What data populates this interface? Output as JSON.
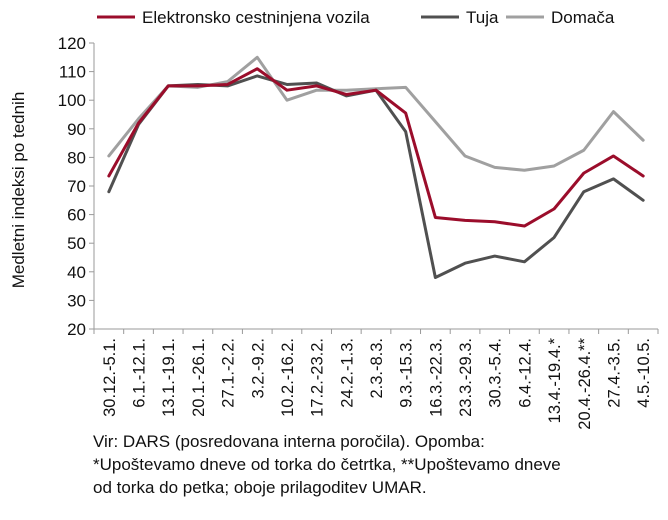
{
  "chart_data": {
    "type": "line",
    "title": "",
    "xlabel": "",
    "ylabel": "Medletni indeksi po tednih",
    "ylim": [
      20,
      120
    ],
    "yticks": [
      20,
      30,
      40,
      50,
      60,
      70,
      80,
      90,
      100,
      110,
      120
    ],
    "grid": false,
    "legend_position": "top",
    "categories": [
      "30.12.-5.1.",
      "6.1.-12.1.",
      "13.1.-19.1.",
      "20.1.-26.1.",
      "27.1.-2.2.",
      "3.2.-9.2.",
      "10.2.-16.2.",
      "17.2.-23.2.",
      "24.2.-1.3.",
      "2.3.-8.3.",
      "9.3.-15.3.",
      "16.3.-22.3.",
      "23.3.-29.3.",
      "30.3.-5.4.",
      "6.4.-12.4.",
      "13.4.-19.4.*",
      "20.4.-26.4.**",
      "27.4.-3.5.",
      "4.5.-10.5."
    ],
    "series": [
      {
        "name": "Elektronsko cestninjena vozila",
        "color": "#9b0d2b",
        "values": [
          73.5,
          92,
          105,
          105,
          105.5,
          111,
          103.5,
          105,
          102,
          103.5,
          95.5,
          59,
          58,
          57.5,
          56,
          62,
          74.5,
          80.5,
          73.5
        ]
      },
      {
        "name": "Tuja",
        "color": "#505050",
        "values": [
          68,
          91.5,
          105,
          105.5,
          105,
          108.5,
          105.5,
          106,
          101.5,
          103.5,
          89,
          38,
          43,
          45.5,
          43.5,
          52,
          68,
          72.5,
          65
        ]
      },
      {
        "name": "Domača",
        "color": "#a0a0a0",
        "values": [
          80.5,
          93.5,
          105,
          104.5,
          106.5,
          115,
          100,
          103.5,
          103.5,
          104,
          104.5,
          92.5,
          80.5,
          76.5,
          75.5,
          77,
          82.5,
          96,
          86
        ]
      }
    ]
  },
  "note": {
    "line1": "Vir: DARS (posredovana interna poročila). Opomba:",
    "line2": "*Upoštevamo dneve od torka do četrtka, **Upoštevamo dneve",
    "line3": "od torka do petka; oboje prilagoditev UMAR."
  }
}
